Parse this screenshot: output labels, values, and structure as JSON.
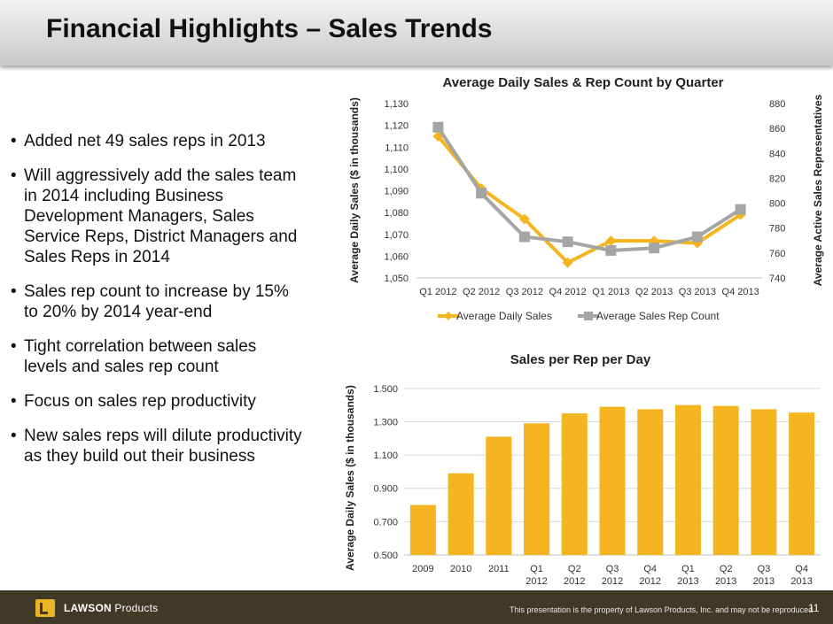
{
  "slide": {
    "title": "Financial Highlights – Sales Trends",
    "bullets": [
      "Added net 49 sales reps in 2013",
      "Will aggressively add the sales team in 2014 including Business Development Managers, Sales Service Reps, District Managers and Sales Reps in 2014",
      "Sales rep count to increase by 15% to 20% by 2014 year-end",
      "Tight correlation between sales levels and sales rep count",
      "Focus on sales rep productivity",
      "New sales reps will dilute productivity as they build out their business"
    ],
    "bullet_glyph": "•"
  },
  "footer": {
    "brand_bold": "LAWSON",
    "brand_rest": " Products",
    "disclaimer": "This presentation is the property of Lawson Products, Inc. and may not be reproduced",
    "page": "11"
  },
  "colors": {
    "gold": "#f5b520",
    "gray": "#a5a5a5",
    "footer_bg": "#403926"
  },
  "chart_data": [
    {
      "type": "line",
      "title": "Average Daily Sales & Rep Count by Quarter",
      "categories": [
        "Q1 2012",
        "Q2 2012",
        "Q3 2012",
        "Q4 2012",
        "Q1 2013",
        "Q2 2013",
        "Q3 2013",
        "Q4 2013"
      ],
      "ylabel": "Average Daily Sales ($ in thousands)",
      "y2label": "Average Active Sales Representatives",
      "ylim": [
        1050,
        1130
      ],
      "y_ticks": [
        "1,050",
        "1,060",
        "1,070",
        "1,080",
        "1,090",
        "1,100",
        "1,110",
        "1,120",
        "1,130"
      ],
      "y2lim": [
        740,
        880
      ],
      "y2_ticks": [
        "740",
        "760",
        "780",
        "800",
        "820",
        "840",
        "860",
        "880"
      ],
      "legend_position": "bottom",
      "series": [
        {
          "name": "Average Daily Sales",
          "axis": "left",
          "marker": "diamond",
          "color": "#f5b520",
          "values": [
            1115,
            1091,
            1077,
            1057,
            1067,
            1067,
            1066,
            1079
          ]
        },
        {
          "name": "Average Sales Rep Count",
          "axis": "right",
          "marker": "square",
          "color": "#a5a5a5",
          "values": [
            861,
            808,
            773,
            769,
            762,
            764,
            773,
            795
          ]
        }
      ]
    },
    {
      "type": "bar",
      "title": "Sales per Rep per Day",
      "ylabel": "Average Daily Sales ($ in thousands)",
      "categories": [
        [
          "2009"
        ],
        [
          "2010"
        ],
        [
          "2011"
        ],
        [
          "Q1",
          "2012"
        ],
        [
          "Q2",
          "2012"
        ],
        [
          "Q3",
          "2012"
        ],
        [
          "Q4",
          "2012"
        ],
        [
          "Q1",
          "2013"
        ],
        [
          "Q2",
          "2013"
        ],
        [
          "Q3",
          "2013"
        ],
        [
          "Q4",
          "2013"
        ]
      ],
      "values": [
        0.8,
        0.99,
        1.21,
        1.29,
        1.35,
        1.39,
        1.375,
        1.4,
        1.395,
        1.375,
        1.355
      ],
      "ylim": [
        0.5,
        1.6
      ],
      "y_ticks": [
        "0.500",
        "0.700",
        "0.900",
        "1.100",
        "1.300",
        "1.500"
      ],
      "color": "#f5b520",
      "grid": true
    }
  ]
}
